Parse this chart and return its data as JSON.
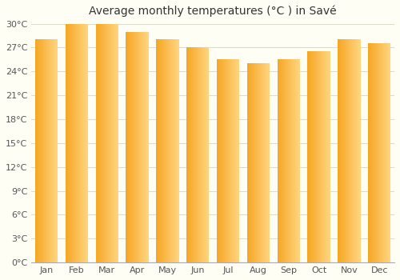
{
  "title": "Average monthly temperatures (°C ) in Savé",
  "months": [
    "Jan",
    "Feb",
    "Mar",
    "Apr",
    "May",
    "Jun",
    "Jul",
    "Aug",
    "Sep",
    "Oct",
    "Nov",
    "Dec"
  ],
  "temperatures": [
    28.0,
    30.0,
    30.0,
    29.0,
    28.0,
    27.0,
    25.5,
    25.0,
    25.5,
    26.5,
    28.0,
    27.5
  ],
  "bar_color_left": "#F5A623",
  "bar_color_right": "#FFD580",
  "ylim": [
    0,
    30
  ],
  "ytick_step": 3,
  "background_color": "#FFFEF5",
  "plot_bg_color": "#FFFEF5",
  "grid_color": "#DDDDCC",
  "title_fontsize": 10,
  "tick_fontsize": 8,
  "bar_width": 0.75
}
